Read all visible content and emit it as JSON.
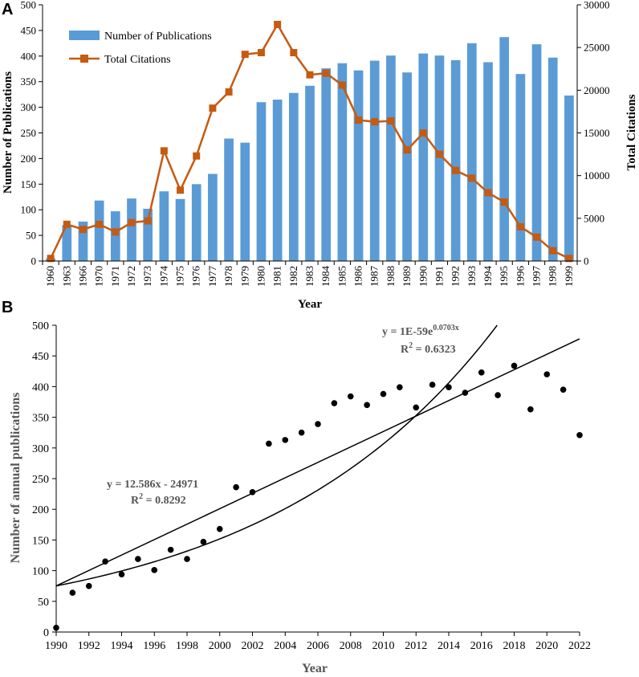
{
  "chart_data": [
    {
      "panel": "A",
      "type": "bar+line",
      "categories": [
        "1960",
        "1963",
        "1966",
        "1970",
        "1971",
        "1972",
        "1973",
        "1974",
        "1975",
        "1976",
        "1977",
        "1978",
        "1979",
        "1980",
        "1981",
        "1982",
        "1983",
        "1984",
        "1985",
        "1986",
        "1987",
        "1988",
        "1989",
        "1990",
        "1991",
        "1992",
        "1993",
        "1994",
        "1995",
        "1996",
        "1997",
        "1998",
        "1999"
      ],
      "series": [
        {
          "name": "Number of Publications",
          "kind": "bar",
          "axis": "left",
          "color": "#5b9bd5",
          "values": [
            5,
            70,
            77,
            118,
            97,
            122,
            102,
            136,
            121,
            150,
            170,
            239,
            231,
            310,
            315,
            328,
            342,
            376,
            386,
            372,
            391,
            401,
            368,
            405,
            401,
            392,
            425,
            388,
            437,
            365,
            423,
            397,
            323
          ]
        },
        {
          "name": "Total Citations",
          "kind": "line",
          "axis": "right",
          "color": "#c55a11",
          "values": [
            300,
            4300,
            3700,
            4300,
            3400,
            4500,
            4700,
            12900,
            8300,
            12300,
            17900,
            19800,
            24200,
            24400,
            27700,
            24400,
            21800,
            22000,
            20600,
            16500,
            16300,
            16400,
            13000,
            15000,
            12500,
            10600,
            9700,
            8000,
            6900,
            4000,
            2800,
            1200,
            300
          ]
        }
      ],
      "xlabel": "Year",
      "ylabel": "Number of Publications",
      "y2label": "Total Citations",
      "ylim": [
        0,
        500
      ],
      "y2lim": [
        0,
        30000
      ],
      "yticks": [
        "0",
        "50",
        "100",
        "150",
        "200",
        "250",
        "300",
        "350",
        "400",
        "450",
        "500"
      ],
      "y2ticks": [
        "0",
        "5000",
        "10000",
        "15000",
        "20000",
        "25000",
        "30000"
      ],
      "legend": "top-left"
    },
    {
      "panel": "B",
      "type": "scatter",
      "x": [
        1990,
        1991,
        1992,
        1993,
        1994,
        1995,
        1996,
        1997,
        1998,
        1999,
        2000,
        2001,
        2002,
        2003,
        2004,
        2005,
        2006,
        2007,
        2008,
        2009,
        2010,
        2011,
        2012,
        2013,
        2014,
        2015,
        2016,
        2017,
        2018,
        2019,
        2020,
        2021,
        2022
      ],
      "y": [
        7,
        64,
        75,
        115,
        94,
        119,
        101,
        134,
        119,
        147,
        168,
        236,
        228,
        307,
        313,
        325,
        339,
        373,
        384,
        370,
        388,
        399,
        366,
        403,
        399,
        390,
        423,
        386,
        434,
        363,
        420,
        395,
        321
      ],
      "xlabel": "Year",
      "ylabel": "Number of annual publications",
      "xlim": [
        1990,
        2022
      ],
      "ylim": [
        0,
        500
      ],
      "xticks": [
        "1990",
        "1992",
        "1994",
        "1996",
        "1998",
        "2000",
        "2002",
        "2004",
        "2006",
        "2008",
        "2010",
        "2012",
        "2014",
        "2016",
        "2018",
        "2020",
        "2022"
      ],
      "yticks": [
        "0",
        "50",
        "100",
        "150",
        "200",
        "250",
        "300",
        "350",
        "400",
        "450",
        "500"
      ],
      "trendlines": {
        "linear": {
          "slope": 12.586,
          "intercept": -24971,
          "equation": "y = 12.586x - 24971",
          "r2_label": "R",
          "r2_sup": "2",
          "r2_value": " = 0.8292"
        },
        "exponential": {
          "equation_base": "y = 1E-59e",
          "equation_exp": "0.0703x",
          "r2_label": "R",
          "r2_sup": "2",
          "r2_value": " = 0.6323"
        }
      }
    }
  ],
  "panels": {
    "a_label": "A",
    "b_label": "B"
  }
}
